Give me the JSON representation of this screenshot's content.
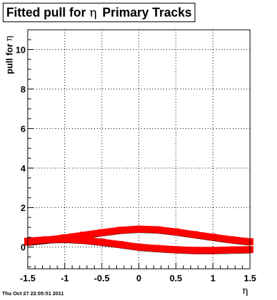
{
  "title": {
    "prefix": "Fitted pull for",
    "symbol": "η",
    "suffix": "Primary Tracks"
  },
  "axes": {
    "ylabel_prefix": "pull for",
    "ylabel_symbol": "η",
    "xlabel": "η"
  },
  "timestamp": "Thu Oct 27 22:05:51 2011",
  "colors": {
    "series_fit": "#ff0000",
    "series_data": "#000000"
  },
  "chart_data": {
    "type": "scatter",
    "xlim": [
      -1.5,
      1.5
    ],
    "ylim": [
      -1.1,
      11.0
    ],
    "x_ticks": [
      -1.5,
      -1,
      -0.5,
      0,
      0.5,
      1,
      1.5
    ],
    "x_tick_labels": [
      "-1.5",
      "-1",
      "-0.5",
      "0",
      "0.5",
      "1",
      "1.5"
    ],
    "y_ticks": [
      0,
      2,
      4,
      6,
      8,
      10
    ],
    "y_tick_labels": [
      "0",
      "2",
      "4",
      "6",
      "8",
      "10"
    ],
    "grid": true,
    "series": [
      {
        "role": "upper band",
        "x": [
          -1.5,
          -1.25,
          -1.0,
          -0.75,
          -0.5,
          -0.25,
          0.0,
          0.25,
          0.5,
          0.75,
          1.0,
          1.25,
          1.5
        ],
        "y": [
          0.2,
          0.3,
          0.42,
          0.55,
          0.68,
          0.8,
          0.86,
          0.83,
          0.72,
          0.58,
          0.45,
          0.32,
          0.22
        ]
      },
      {
        "role": "lower band",
        "x": [
          -1.5,
          -1.25,
          -1.0,
          -0.75,
          -0.5,
          -0.25,
          0.0,
          0.25,
          0.5,
          0.75,
          1.0,
          1.25,
          1.5
        ],
        "y": [
          0.25,
          0.32,
          0.35,
          0.3,
          0.2,
          0.08,
          -0.05,
          -0.12,
          -0.18,
          -0.22,
          -0.22,
          -0.2,
          -0.18
        ]
      }
    ]
  }
}
